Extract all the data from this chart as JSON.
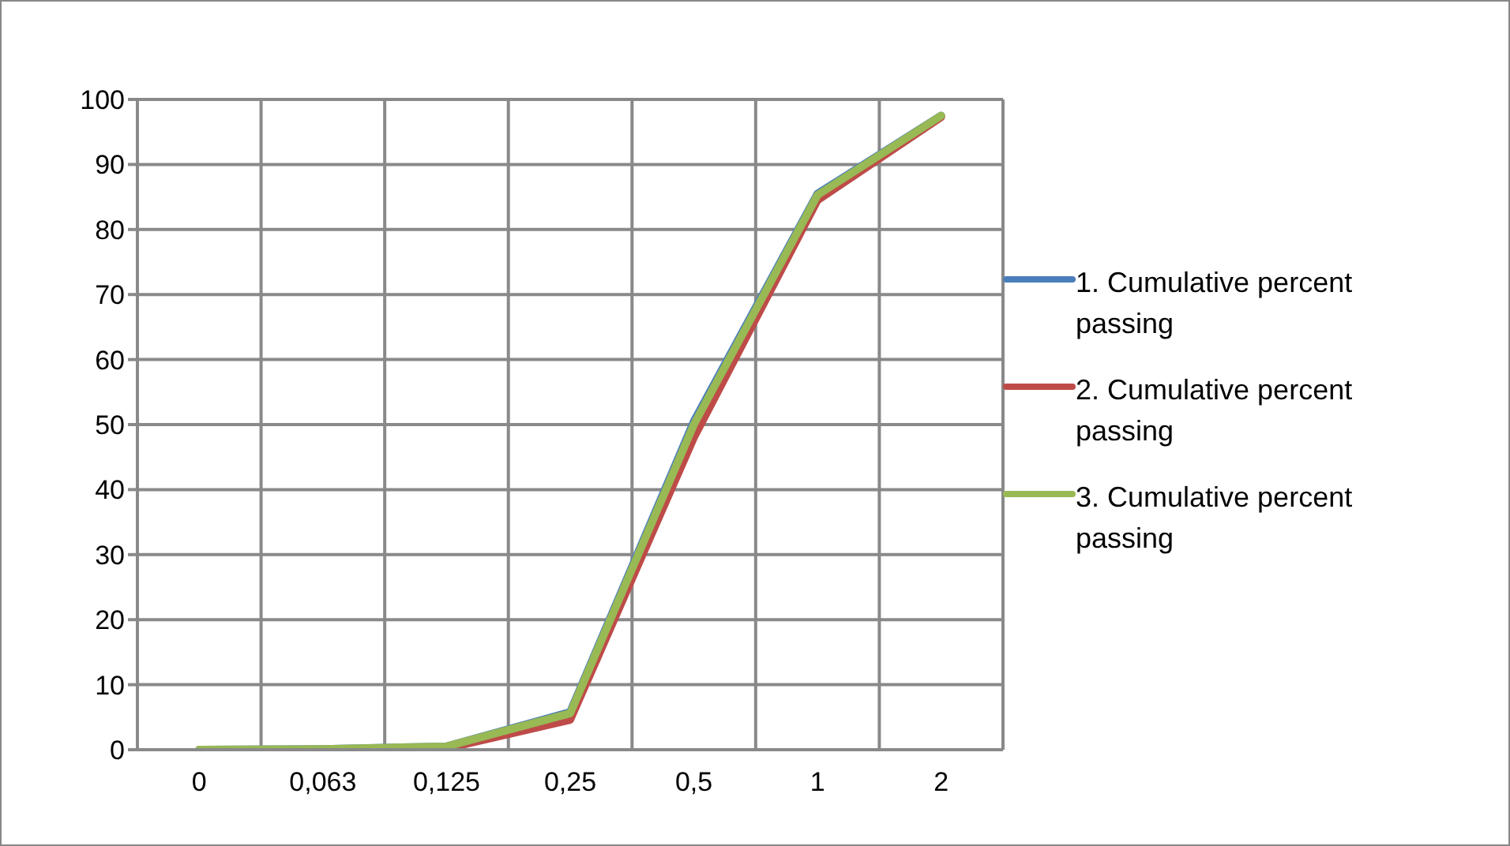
{
  "chart_data": {
    "type": "line",
    "categories": [
      "0",
      "0,063",
      "0,125",
      "0,25",
      "0,5",
      "1",
      "2"
    ],
    "series": [
      {
        "name": "1. Cumulative percent passing",
        "color": "#4a7ebb",
        "values": [
          0,
          0.1,
          0.5,
          5.8,
          50.5,
          85.5,
          97.5
        ]
      },
      {
        "name": "2. Cumulative percent passing",
        "color": "#be4b48",
        "values": [
          0,
          0,
          0.2,
          4.6,
          48,
          84.5,
          97.3
        ]
      },
      {
        "name": "3. Cumulative percent passing",
        "color": "#98b954",
        "values": [
          0,
          0.1,
          0.5,
          5.6,
          50,
          85.3,
          97.5
        ]
      }
    ],
    "ylim": [
      0,
      100
    ],
    "yticks": [
      0,
      10,
      20,
      30,
      40,
      50,
      60,
      70,
      80,
      90,
      100
    ],
    "grid": true,
    "legend": "right",
    "marker": "none",
    "line_style": "solid"
  }
}
